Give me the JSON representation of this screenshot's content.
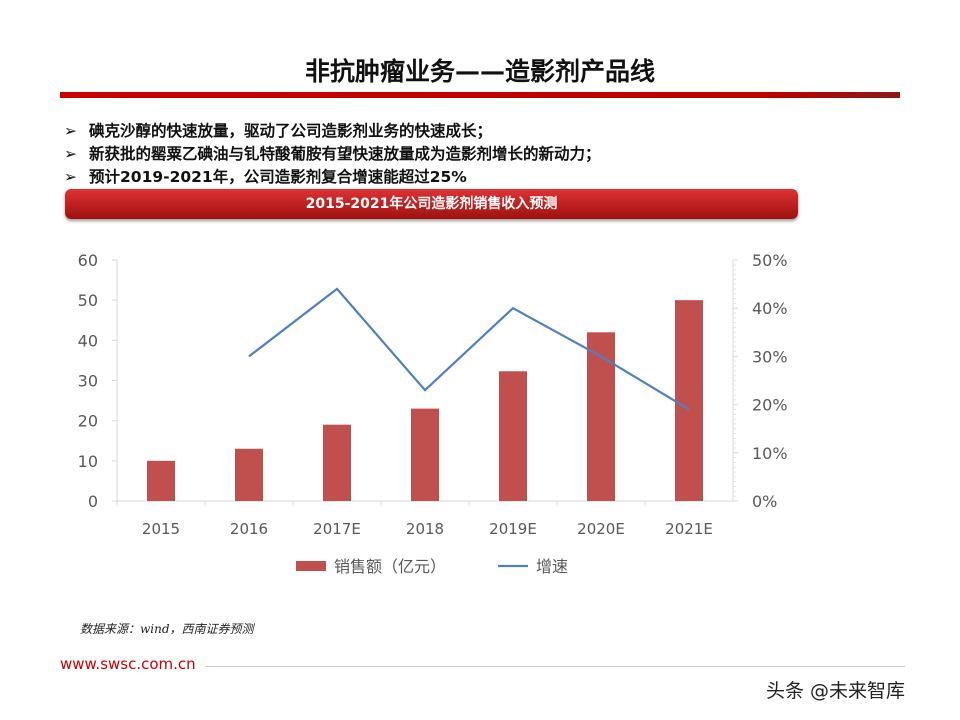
{
  "title": "非抗肿瘤业务——造影剂产品线",
  "bullets": [
    "碘克沙醇的快速放量，驱动了公司造影剂业务的快速成长；",
    "新获批的罂粟乙碘油与钆特酸葡胺有望快速放量成为造影剂增长的新动力；",
    "预计2019-2021年，公司造影剂复合增速能超过25%"
  ],
  "bullet_icon": "arrow-bullet-icon",
  "chart_data": {
    "type": "bar+line",
    "title": "2015-2021年公司造影剂销售收入预测",
    "categories": [
      "2015",
      "2016",
      "2017E",
      "2018",
      "2019E",
      "2020E",
      "2021E"
    ],
    "series": [
      {
        "name": "销售额（亿元）",
        "type": "bar",
        "axis": "left",
        "color": "#c0504d",
        "values": [
          10,
          13,
          19,
          23,
          32.3,
          42,
          50
        ]
      },
      {
        "name": "增速",
        "type": "line",
        "axis": "right",
        "color": "#4f81bd",
        "values": [
          null,
          30,
          44,
          23,
          40,
          30,
          19
        ]
      }
    ],
    "left_axis": {
      "ylim": [
        0,
        60
      ],
      "ticks": [
        "0",
        "10",
        "20",
        "30",
        "40",
        "50",
        "60"
      ]
    },
    "right_axis": {
      "ylim": [
        0,
        50
      ],
      "ticks": [
        "0%",
        "10%",
        "20%",
        "30%",
        "40%",
        "50%"
      ]
    },
    "grid": false,
    "legend": "bottom"
  },
  "source": "数据来源：wind，西南证券预测",
  "url": "www.swsc.com.cn",
  "watermark": "头条 @未来智库"
}
